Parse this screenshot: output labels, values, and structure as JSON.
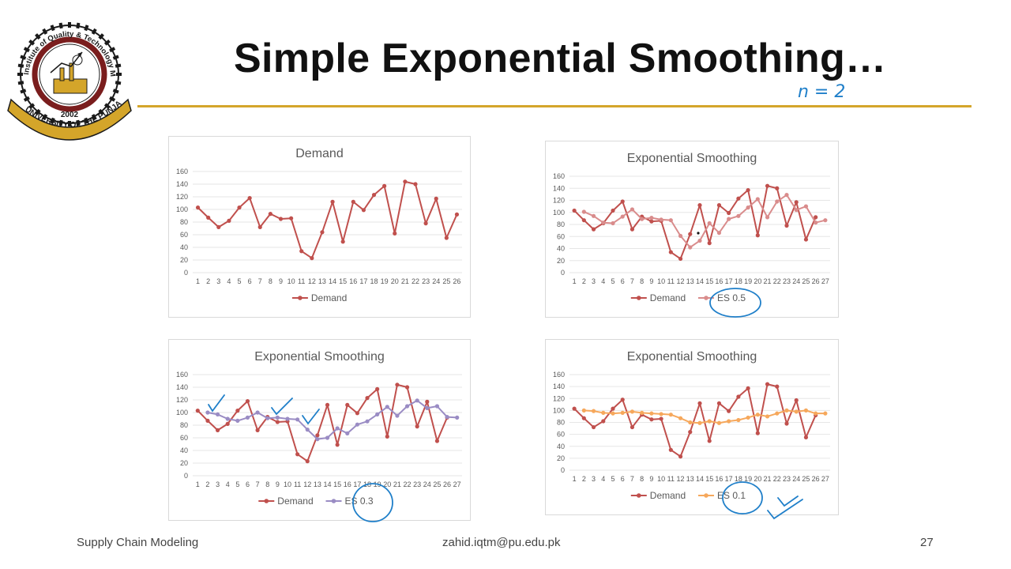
{
  "slide": {
    "title": "Simple Exponential Smoothing…",
    "handwritten_note": "n = 2",
    "footer_left": "Supply Chain Modeling",
    "footer_center": "zahid.iqtm@pu.edu.pk",
    "page_number": "27",
    "accent_color": "#d4a52a"
  },
  "logo": {
    "ring_text": "Institute of Quality & Technology Management",
    "year": "2002",
    "banner_text": "UNIVERSITY OF THE PUNJAB"
  },
  "chart_data": [
    {
      "type": "line",
      "title": "Demand",
      "x": [
        1,
        2,
        3,
        4,
        5,
        6,
        7,
        8,
        9,
        10,
        11,
        12,
        13,
        14,
        15,
        16,
        17,
        18,
        19,
        20,
        21,
        22,
        23,
        24,
        25,
        26
      ],
      "ylim": [
        0,
        160
      ],
      "yticks": [
        0,
        20,
        40,
        60,
        80,
        100,
        120,
        140,
        160
      ],
      "grid": true,
      "legend": "bottom",
      "series": [
        {
          "name": "Demand",
          "color": "#c0504d",
          "values": [
            103,
            87,
            72,
            82,
            103,
            118,
            72,
            93,
            85,
            86,
            34,
            23,
            64,
            112,
            49,
            112,
            99,
            123,
            137,
            62,
            144,
            140,
            78,
            117,
            55,
            92
          ]
        }
      ]
    },
    {
      "type": "line",
      "title": "Exponential Smoothing",
      "x": [
        1,
        2,
        3,
        4,
        5,
        6,
        7,
        8,
        9,
        10,
        11,
        12,
        13,
        14,
        15,
        16,
        17,
        18,
        19,
        20,
        21,
        22,
        23,
        24,
        25,
        26,
        27
      ],
      "ylim": [
        0,
        160
      ],
      "yticks": [
        0,
        20,
        40,
        60,
        80,
        100,
        120,
        140,
        160
      ],
      "grid": true,
      "legend": "bottom",
      "series": [
        {
          "name": "Demand",
          "color": "#c0504d",
          "values": [
            103,
            87,
            72,
            82,
            103,
            118,
            72,
            93,
            85,
            86,
            34,
            23,
            64,
            112,
            49,
            112,
            99,
            123,
            137,
            62,
            144,
            140,
            78,
            117,
            55,
            92,
            null
          ]
        },
        {
          "name": "ES 0.5",
          "color": "#d98c8c",
          "values": [
            null,
            101,
            94,
            83,
            82,
            93,
            105,
            89,
            91,
            88,
            87,
            61,
            42,
            53,
            82,
            66,
            89,
            94,
            108,
            122,
            92,
            118,
            129,
            104,
            110,
            83,
            87
          ]
        }
      ]
    },
    {
      "type": "line",
      "title": "Exponential Smoothing",
      "x": [
        1,
        2,
        3,
        4,
        5,
        6,
        7,
        8,
        9,
        10,
        11,
        12,
        13,
        14,
        15,
        16,
        17,
        18,
        19,
        20,
        21,
        22,
        23,
        24,
        25,
        26,
        27
      ],
      "ylim": [
        0,
        160
      ],
      "yticks": [
        0,
        20,
        40,
        60,
        80,
        100,
        120,
        140,
        160
      ],
      "grid": true,
      "legend": "bottom",
      "series": [
        {
          "name": "Demand",
          "color": "#c0504d",
          "values": [
            103,
            87,
            72,
            82,
            103,
            118,
            72,
            93,
            85,
            86,
            34,
            23,
            64,
            112,
            49,
            112,
            99,
            123,
            137,
            62,
            144,
            140,
            78,
            117,
            55,
            92,
            null
          ]
        },
        {
          "name": "ES 0.3",
          "color": "#9a8cc4",
          "values": [
            null,
            100,
            97,
            90,
            87,
            92,
            100,
            91,
            92,
            90,
            89,
            73,
            58,
            60,
            75,
            67,
            81,
            86,
            97,
            109,
            95,
            110,
            119,
            107,
            110,
            93,
            92
          ]
        }
      ]
    },
    {
      "type": "line",
      "title": "Exponential Smoothing",
      "x": [
        1,
        2,
        3,
        4,
        5,
        6,
        7,
        8,
        9,
        10,
        11,
        12,
        13,
        14,
        15,
        16,
        17,
        18,
        19,
        20,
        21,
        22,
        23,
        24,
        25,
        26,
        27
      ],
      "ylim": [
        0,
        160
      ],
      "yticks": [
        0,
        20,
        40,
        60,
        80,
        100,
        120,
        140,
        160
      ],
      "grid": true,
      "legend": "bottom",
      "series": [
        {
          "name": "Demand",
          "color": "#c0504d",
          "values": [
            103,
            87,
            72,
            82,
            103,
            118,
            72,
            93,
            85,
            86,
            34,
            23,
            64,
            112,
            49,
            112,
            99,
            123,
            137,
            62,
            144,
            140,
            78,
            117,
            55,
            92,
            null
          ]
        },
        {
          "name": "ES 0.1",
          "color": "#f6a85c",
          "values": [
            null,
            100,
            99,
            96,
            95,
            96,
            98,
            96,
            95,
            94,
            93,
            87,
            80,
            79,
            82,
            79,
            82,
            84,
            88,
            93,
            90,
            95,
            100,
            98,
            100,
            95,
            95
          ]
        }
      ]
    }
  ]
}
